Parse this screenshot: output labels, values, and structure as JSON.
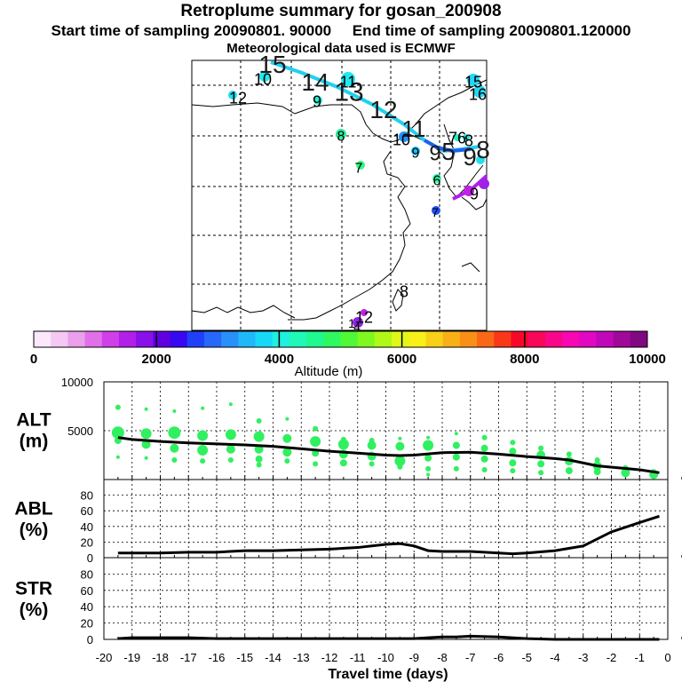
{
  "header": {
    "title": "Retroplume summary for gosan_200908",
    "subtitle_start": "Start time of sampling 20090801. 90000",
    "subtitle_end": "End time of sampling 20090801.120000",
    "met_line": "Meteorological data used is ECMWF"
  },
  "colorbar": {
    "ticks": [
      "0",
      "2000",
      "4000",
      "6000",
      "8000",
      "10000"
    ],
    "label": "Altitude (m)",
    "colors": [
      "#fbe8fb",
      "#f3c8f3",
      "#eaa0ea",
      "#e070e8",
      "#d040e8",
      "#b020e8",
      "#8810e8",
      "#6000e0",
      "#3808f0",
      "#2040f8",
      "#2868f8",
      "#2890f8",
      "#20b8f8",
      "#18d8f8",
      "#20f0e0",
      "#20f8b8",
      "#20f890",
      "#30f860",
      "#50f838",
      "#80f820",
      "#b0f818",
      "#e0f818",
      "#f8f018",
      "#f8d018",
      "#f8b018",
      "#f89018",
      "#f86818",
      "#f83818",
      "#f80828",
      "#f80858",
      "#f80888",
      "#f808b0",
      "#e008c0",
      "#c008b8",
      "#a00898",
      "#800880"
    ]
  },
  "map_labels": [
    {
      "t": "15",
      "x": 307,
      "y": 72,
      "s": 28,
      "c": "#1a1a1a"
    },
    {
      "t": "14",
      "x": 355,
      "y": 92,
      "s": 28,
      "c": "#1a1a1a"
    },
    {
      "t": "13",
      "x": 393,
      "y": 103,
      "s": 30,
      "c": "#1a1a1a"
    },
    {
      "t": "12",
      "x": 432,
      "y": 123,
      "s": 28,
      "c": "#1a1a1a"
    },
    {
      "t": "11",
      "x": 466,
      "y": 145,
      "s": 26,
      "c": "#1a1a1a"
    },
    {
      "t": "10",
      "x": 296,
      "y": 89,
      "s": 18,
      "c": "#000000"
    },
    {
      "t": "12",
      "x": 268,
      "y": 110,
      "s": 18,
      "c": "#000000"
    },
    {
      "t": "11",
      "x": 392,
      "y": 92,
      "s": 18,
      "c": "#000000"
    },
    {
      "t": "9",
      "x": 357,
      "y": 114,
      "s": 18,
      "c": "#000000"
    },
    {
      "t": "8",
      "x": 384,
      "y": 153,
      "s": 16,
      "c": "#000000"
    },
    {
      "t": "10",
      "x": 452,
      "y": 157,
      "s": 18,
      "c": "#000000"
    },
    {
      "t": "9",
      "x": 468,
      "y": 172,
      "s": 16,
      "c": "#000000"
    },
    {
      "t": "7",
      "x": 404,
      "y": 189,
      "s": 16,
      "c": "#000000"
    },
    {
      "t": "6",
      "x": 492,
      "y": 203,
      "s": 16,
      "c": "#000000"
    },
    {
      "t": "7",
      "x": 490,
      "y": 239,
      "s": 14,
      "c": "#000000"
    },
    {
      "t": "15",
      "x": 533,
      "y": 92,
      "s": 18,
      "c": "#000000"
    },
    {
      "t": "16",
      "x": 538,
      "y": 106,
      "s": 18,
      "c": "#000000"
    },
    {
      "t": "9",
      "x": 490,
      "y": 172,
      "s": 24,
      "c": "#1a1a1a"
    },
    {
      "t": "5",
      "x": 505,
      "y": 170,
      "s": 28,
      "c": "#1a1a1a"
    },
    {
      "t": "7",
      "x": 510,
      "y": 155,
      "s": 18,
      "c": "#000000"
    },
    {
      "t": "6",
      "x": 520,
      "y": 155,
      "s": 18,
      "c": "#000000"
    },
    {
      "t": "8",
      "x": 528,
      "y": 158,
      "s": 18,
      "c": "#000000"
    },
    {
      "t": "9",
      "x": 529,
      "y": 176,
      "s": 28,
      "c": "#1a1a1a"
    },
    {
      "t": "8",
      "x": 544,
      "y": 168,
      "s": 28,
      "c": "#1a1a1a"
    },
    {
      "t": "9",
      "x": 534,
      "y": 218,
      "s": 18,
      "c": "#000000"
    },
    {
      "t": "8",
      "x": 455,
      "y": 328,
      "s": 18,
      "c": "#000000"
    },
    {
      "t": "1",
      "x": 396,
      "y": 364,
      "s": 14,
      "c": "#000000"
    },
    {
      "t": "12",
      "x": 410,
      "y": 357,
      "s": 18,
      "c": "#000000"
    },
    {
      "t": "4",
      "x": 402,
      "y": 368,
      "s": 14,
      "c": "#000000"
    }
  ],
  "map_dots": [
    {
      "x": 262,
      "y": 107,
      "r": 5,
      "c": "#20e0f0"
    },
    {
      "x": 298,
      "y": 86,
      "r": 6,
      "c": "#20e8f0"
    },
    {
      "x": 358,
      "y": 113,
      "r": 5,
      "c": "#20f0d0"
    },
    {
      "x": 392,
      "y": 89,
      "r": 8,
      "c": "#20e8f0"
    },
    {
      "x": 384,
      "y": 151,
      "r": 6,
      "c": "#28f0a0"
    },
    {
      "x": 406,
      "y": 186,
      "r": 5,
      "c": "#30f888"
    },
    {
      "x": 455,
      "y": 154,
      "r": 6,
      "c": "#2090f8"
    },
    {
      "x": 468,
      "y": 170,
      "r": 5,
      "c": "#20c0f8"
    },
    {
      "x": 492,
      "y": 201,
      "r": 5,
      "c": "#30f8a0"
    },
    {
      "x": 491,
      "y": 237,
      "r": 5,
      "c": "#2050f8"
    },
    {
      "x": 533,
      "y": 90,
      "r": 7,
      "c": "#20d8f8"
    },
    {
      "x": 540,
      "y": 103,
      "r": 7,
      "c": "#20d8f8"
    },
    {
      "x": 515,
      "y": 155,
      "r": 4,
      "c": "#20f0c0"
    },
    {
      "x": 525,
      "y": 155,
      "r": 4,
      "c": "#20e8e0"
    },
    {
      "x": 541,
      "y": 180,
      "r": 5,
      "c": "#20e0f0"
    },
    {
      "x": 528,
      "y": 215,
      "r": 6,
      "c": "#c020e8"
    },
    {
      "x": 545,
      "y": 207,
      "r": 6,
      "c": "#a020e8"
    },
    {
      "x": 403,
      "y": 363,
      "r": 6,
      "c": "#9020e8"
    },
    {
      "x": 410,
      "y": 352,
      "r": 4,
      "c": "#c020e8"
    }
  ],
  "chart_data": [
    {
      "type": "scatter",
      "name": "ALT",
      "ylabel": "ALT",
      "yunit": "(m)",
      "xlim": [
        -20,
        0
      ],
      "ylim": [
        0,
        10000
      ],
      "yticks": [
        0,
        5000,
        10000
      ],
      "yticklabels": [
        "",
        "5000",
        "10000"
      ],
      "median_x": [
        -19.5,
        -19,
        -18,
        -17,
        -16,
        -15,
        -14,
        -13,
        -12,
        -11,
        -10,
        -9.5,
        -9,
        -8,
        -7,
        -6,
        -5,
        -4,
        -3.5,
        -2.5,
        -1,
        -0.3
      ],
      "median_y": [
        4300,
        4100,
        3900,
        3750,
        3650,
        3550,
        3400,
        3150,
        2900,
        2700,
        2500,
        2450,
        2500,
        2750,
        2800,
        2600,
        2350,
        2150,
        2000,
        1400,
        1000,
        700
      ],
      "scatter_x": [
        -19.5,
        -19.5,
        -19.5,
        -19.5,
        -18.5,
        -18.5,
        -18.5,
        -18.5,
        -17.5,
        -17.5,
        -17.5,
        -17.5,
        -16.5,
        -16.5,
        -16.5,
        -16.5,
        -15.5,
        -15.5,
        -15.5,
        -15.5,
        -14.5,
        -14.5,
        -14.5,
        -14.5,
        -14.5,
        -13.5,
        -13.5,
        -13.5,
        -13.5,
        -12.5,
        -12.5,
        -12.5,
        -12.5,
        -11.5,
        -11.5,
        -11.5,
        -11.5,
        -10.5,
        -10.5,
        -10.5,
        -10.5,
        -9.5,
        -9.5,
        -9.5,
        -9.5,
        -8.5,
        -8.5,
        -8.5,
        -8.5,
        -8.5,
        -7.5,
        -7.5,
        -7.5,
        -7.5,
        -6.5,
        -6.5,
        -6.5,
        -6.5,
        -5.5,
        -5.5,
        -5.5,
        -5.5,
        -4.5,
        -4.5,
        -4.5,
        -4.5,
        -3.5,
        -3.5,
        -3.5,
        -2.5,
        -2.5,
        -2.5,
        -1.5,
        -1.5,
        -0.5,
        -0.5
      ],
      "scatter_y": [
        7400,
        4800,
        4000,
        2300,
        7200,
        4700,
        3600,
        2200,
        7000,
        4800,
        3200,
        2000,
        7300,
        4500,
        3000,
        1900,
        7700,
        4600,
        3100,
        2000,
        6000,
        4400,
        3100,
        2100,
        1500,
        6200,
        4200,
        2800,
        1900,
        5200,
        3900,
        2700,
        1600,
        4100,
        3600,
        2600,
        1700,
        4000,
        3500,
        2400,
        1600,
        4200,
        3400,
        1900,
        1300,
        4300,
        3500,
        2200,
        1100,
        500,
        4700,
        3500,
        2300,
        1100,
        4300,
        3200,
        2100,
        1000,
        3800,
        2900,
        1700,
        900,
        3200,
        2500,
        1600,
        700,
        2600,
        1900,
        900,
        2000,
        1400,
        800,
        1200,
        700,
        700,
        500
      ],
      "scatter_r": [
        3,
        7,
        4,
        2,
        2,
        6,
        5,
        2,
        2,
        7,
        5,
        3,
        2,
        6,
        6,
        3,
        2,
        6,
        5,
        3,
        3,
        6,
        5,
        4,
        3,
        2,
        5,
        5,
        3,
        3,
        6,
        4,
        3,
        3,
        6,
        5,
        4,
        3,
        5,
        5,
        3,
        2,
        5,
        6,
        3,
        2,
        6,
        4,
        3,
        2,
        2,
        4,
        4,
        3,
        3,
        4,
        4,
        3,
        3,
        4,
        4,
        3,
        3,
        5,
        4,
        3,
        3,
        5,
        4,
        3,
        5,
        4,
        3,
        5,
        4,
        5
      ]
    },
    {
      "type": "line",
      "name": "ABL",
      "ylabel": "ABL",
      "yunit": "(%)",
      "xlim": [
        -20,
        0
      ],
      "ylim": [
        0,
        100
      ],
      "yticks": [
        0,
        20,
        40,
        60,
        80
      ],
      "yticklabels": [
        "0",
        "20",
        "40",
        "60",
        "80"
      ],
      "x": [
        -19.5,
        -19,
        -18,
        -17,
        -16,
        -15,
        -14,
        -13,
        -12,
        -11,
        -10,
        -9.5,
        -9,
        -8.5,
        -8,
        -7,
        -6,
        -5.5,
        -5,
        -4,
        -3,
        -2,
        -1,
        -0.3
      ],
      "y": [
        6,
        6,
        6,
        7,
        7,
        9,
        9,
        10,
        11,
        13,
        17,
        18,
        15,
        9,
        8,
        8,
        6,
        5,
        6,
        9,
        15,
        33,
        45,
        53
      ]
    },
    {
      "type": "line",
      "name": "STR",
      "ylabel": "STR",
      "yunit": "(%)",
      "xlim": [
        -20,
        0
      ],
      "ylim": [
        0,
        100
      ],
      "yticks": [
        0,
        20,
        40,
        60,
        80
      ],
      "yticklabels": [
        "0",
        "20",
        "40",
        "60",
        "80"
      ],
      "x": [
        -19.5,
        -19,
        -18,
        -17,
        -16,
        -15,
        -14,
        -13,
        -12,
        -11,
        -10,
        -9,
        -8.5,
        -8,
        -7.5,
        -7,
        -6,
        -5,
        -4,
        -3,
        -2,
        -1,
        -0.3
      ],
      "y": [
        1,
        2,
        2,
        2,
        1,
        1,
        1,
        1,
        1,
        1,
        1,
        1,
        2,
        3,
        3,
        4,
        3,
        1,
        0,
        0,
        0,
        0,
        0
      ]
    }
  ],
  "xaxis": {
    "ticklabels": [
      "-20",
      "-19",
      "-18",
      "-17",
      "-16",
      "-15",
      "-14",
      "-13",
      "-12",
      "-11",
      "-10",
      "-9",
      "-8",
      "-7",
      "-6",
      "-5",
      "-4",
      "-3",
      "-2",
      "-1",
      "0"
    ],
    "xlabel": "Travel time (days)"
  }
}
